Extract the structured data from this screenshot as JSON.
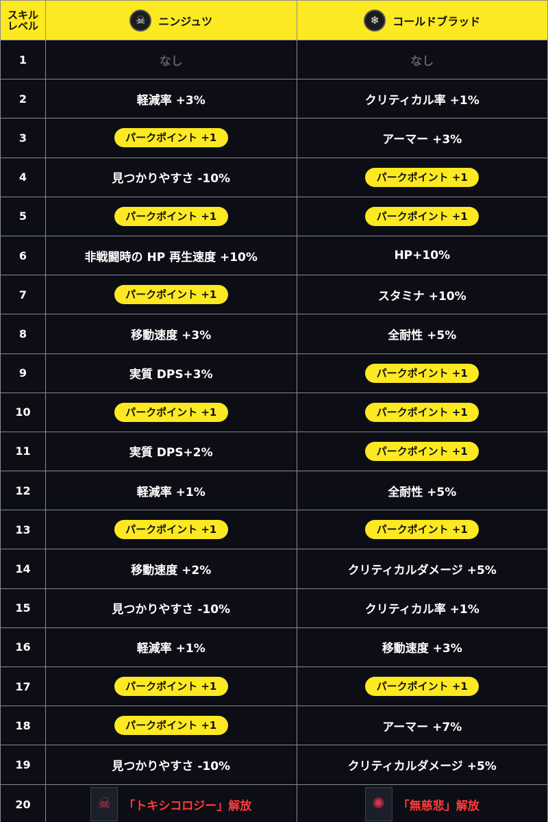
{
  "header": {
    "level_label_line1": "スキル",
    "level_label_line2": "レベル",
    "skill1": {
      "name": "ニンジュツ",
      "icon": "ninja-skull-icon"
    },
    "skill2": {
      "name": "コールドブラッド",
      "icon": "snowflake-icon"
    }
  },
  "rows": [
    {
      "level": "1",
      "a": {
        "text": "なし",
        "kind": "none"
      },
      "b": {
        "text": "なし",
        "kind": "none"
      }
    },
    {
      "level": "2",
      "a": {
        "text": "軽減率 +3%",
        "kind": "text"
      },
      "b": {
        "text": "クリティカル率 +1%",
        "kind": "text"
      }
    },
    {
      "level": "3",
      "a": {
        "text": "パークポイント +1",
        "kind": "perk"
      },
      "b": {
        "text": "アーマー +3%",
        "kind": "text"
      }
    },
    {
      "level": "4",
      "a": {
        "text": "見つかりやすさ -10%",
        "kind": "text"
      },
      "b": {
        "text": "パークポイント +1",
        "kind": "perk"
      }
    },
    {
      "level": "5",
      "a": {
        "text": "パークポイント +1",
        "kind": "perk"
      },
      "b": {
        "text": "パークポイント +1",
        "kind": "perk"
      }
    },
    {
      "level": "6",
      "a": {
        "text": "非戦闘時の HP 再生速度 +10%",
        "kind": "text"
      },
      "b": {
        "text": "HP+10%",
        "kind": "text"
      }
    },
    {
      "level": "7",
      "a": {
        "text": "パークポイント +1",
        "kind": "perk"
      },
      "b": {
        "text": "スタミナ +10%",
        "kind": "text"
      }
    },
    {
      "level": "8",
      "a": {
        "text": "移動速度 +3%",
        "kind": "text"
      },
      "b": {
        "text": "全耐性 +5%",
        "kind": "text"
      }
    },
    {
      "level": "9",
      "a": {
        "text": "実質 DPS+3%",
        "kind": "text"
      },
      "b": {
        "text": "パークポイント +1",
        "kind": "perk"
      }
    },
    {
      "level": "10",
      "a": {
        "text": "パークポイント +1",
        "kind": "perk"
      },
      "b": {
        "text": "パークポイント +1",
        "kind": "perk"
      }
    },
    {
      "level": "11",
      "a": {
        "text": "実質 DPS+2%",
        "kind": "text"
      },
      "b": {
        "text": "パークポイント +1",
        "kind": "perk"
      }
    },
    {
      "level": "12",
      "a": {
        "text": "軽減率 +1%",
        "kind": "text"
      },
      "b": {
        "text": "全耐性 +5%",
        "kind": "text"
      }
    },
    {
      "level": "13",
      "a": {
        "text": "パークポイント +1",
        "kind": "perk"
      },
      "b": {
        "text": "パークポイント +1",
        "kind": "perk"
      }
    },
    {
      "level": "14",
      "a": {
        "text": "移動速度 +2%",
        "kind": "text"
      },
      "b": {
        "text": "クリティカルダメージ +5%",
        "kind": "text"
      }
    },
    {
      "level": "15",
      "a": {
        "text": "見つかりやすさ -10%",
        "kind": "text"
      },
      "b": {
        "text": "クリティカル率 +1%",
        "kind": "text"
      }
    },
    {
      "level": "16",
      "a": {
        "text": "軽減率 +1%",
        "kind": "text"
      },
      "b": {
        "text": "移動速度 +3%",
        "kind": "text"
      }
    },
    {
      "level": "17",
      "a": {
        "text": "パークポイント +1",
        "kind": "perk"
      },
      "b": {
        "text": "パークポイント +1",
        "kind": "perk"
      }
    },
    {
      "level": "18",
      "a": {
        "text": "パークポイント +1",
        "kind": "perk"
      },
      "b": {
        "text": "アーマー +7%",
        "kind": "text"
      }
    },
    {
      "level": "19",
      "a": {
        "text": "見つかりやすさ -10%",
        "kind": "text"
      },
      "b": {
        "text": "クリティカルダメージ +5%",
        "kind": "text"
      }
    },
    {
      "level": "20",
      "a": {
        "text": "「トキシコロジー」解放",
        "kind": "unlock",
        "icon": "toxicology-perk-icon"
      },
      "b": {
        "text": "「無慈悲」解放",
        "kind": "unlock",
        "icon": "merciless-perk-icon"
      }
    }
  ],
  "colors": {
    "accent_yellow": "#fde921",
    "background": "#0d0e15",
    "grid_line": "#8a8a8e",
    "unlock_red": "#ff3b3b",
    "muted_text": "#606068"
  }
}
